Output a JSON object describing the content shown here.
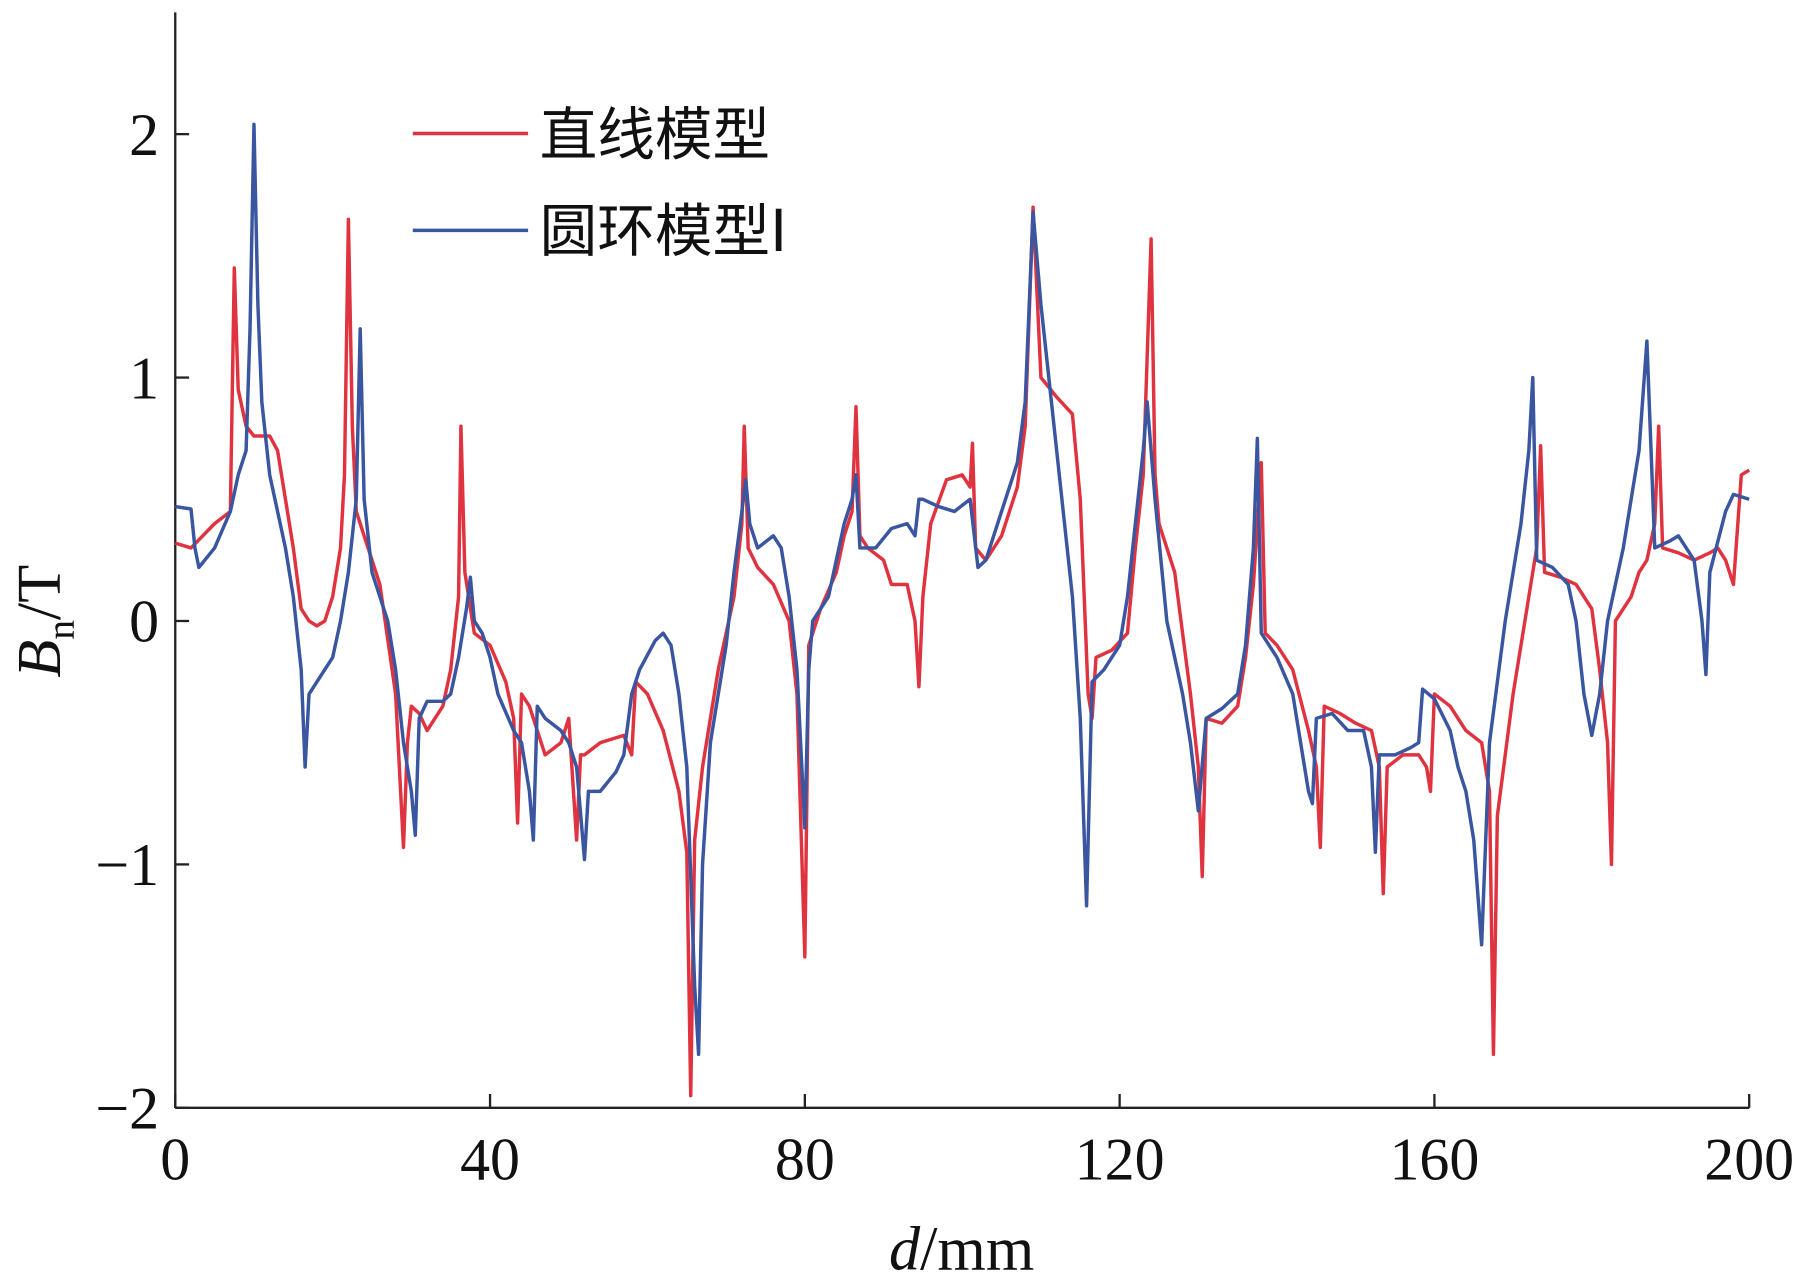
{
  "chart_data": {
    "type": "line",
    "x_label": {
      "symbol": "d",
      "unit": "/mm"
    },
    "y_label": {
      "symbol": "B",
      "subscript": "n",
      "unit": "/T"
    },
    "xlim": [
      0,
      200
    ],
    "xticks": [
      0,
      40,
      80,
      120,
      160,
      200
    ],
    "ylim": [
      -2,
      2.5
    ],
    "yticks": [
      {
        "value": -2,
        "label": "−2"
      },
      {
        "value": -1,
        "label": "−1"
      },
      0,
      1,
      2
    ],
    "legend": "upper-left",
    "series": [
      {
        "name": "直线模型",
        "color": "#e03340",
        "x": [
          0,
          2,
          5,
          7,
          7.5,
          8,
          9,
          10,
          12,
          13,
          15,
          16,
          17,
          18,
          19,
          20,
          21,
          21.5,
          22,
          22.5,
          23,
          24,
          26,
          28,
          29,
          29.5,
          30,
          31,
          32,
          34,
          35,
          36,
          36.3,
          36.8,
          38,
          40,
          42,
          43,
          43.5,
          44,
          45,
          46,
          47,
          49,
          50,
          51,
          51.5,
          52,
          54,
          57,
          58,
          58.5,
          60,
          62,
          64,
          65,
          65.5,
          66,
          67,
          69,
          71,
          72,
          72.3,
          72.8,
          74,
          76,
          78,
          79,
          80,
          80.5,
          82,
          84,
          85,
          86,
          86.5,
          87,
          88,
          90,
          91,
          93,
          94,
          94.5,
          95,
          96,
          98,
          100,
          101,
          101.3,
          101.7,
          103,
          105,
          107,
          108,
          109,
          110,
          112,
          114,
          115,
          116,
          116.5,
          117,
          119,
          121,
          122,
          123,
          124,
          124.5,
          125,
          127,
          129,
          130,
          130.5,
          131,
          133,
          135,
          136,
          137,
          138,
          138.5,
          140,
          142,
          144,
          145,
          145.5,
          146,
          148,
          150,
          152,
          153,
          153.5,
          154,
          156,
          158,
          159,
          159.5,
          160,
          162,
          164,
          166,
          167,
          167.5,
          168,
          170,
          172,
          173,
          173.5,
          174,
          176,
          178,
          180,
          181,
          182,
          182.5,
          183,
          185,
          186,
          187,
          188,
          188.5,
          189,
          191,
          193,
          195,
          196,
          197,
          198,
          199,
          200
        ],
        "values": [
          0.32,
          0.3,
          0.4,
          0.45,
          1.45,
          0.95,
          0.8,
          0.76,
          0.76,
          0.7,
          0.3,
          0.05,
          0,
          -0.02,
          0,
          0.1,
          0.3,
          0.6,
          1.65,
          0.8,
          0.45,
          0.35,
          0.15,
          -0.3,
          -0.93,
          -0.5,
          -0.35,
          -0.38,
          -0.45,
          -0.35,
          -0.2,
          0.1,
          0.8,
          0.2,
          -0.05,
          -0.1,
          -0.25,
          -0.4,
          -0.83,
          -0.3,
          -0.35,
          -0.45,
          -0.55,
          -0.5,
          -0.4,
          -0.9,
          -0.55,
          -0.55,
          -0.5,
          -0.47,
          -0.55,
          -0.25,
          -0.3,
          -0.45,
          -0.7,
          -0.95,
          -1.95,
          -0.9,
          -0.6,
          -0.2,
          0.1,
          0.4,
          0.8,
          0.3,
          0.22,
          0.15,
          0,
          -0.3,
          -1.38,
          -0.1,
          0.05,
          0.2,
          0.35,
          0.45,
          0.88,
          0.35,
          0.3,
          0.25,
          0.15,
          0.15,
          0,
          -0.27,
          0.1,
          0.4,
          0.58,
          0.6,
          0.55,
          0.73,
          0.3,
          0.25,
          0.35,
          0.55,
          0.8,
          1.7,
          1,
          0.92,
          0.85,
          0.5,
          -0.3,
          -0.4,
          -0.15,
          -0.12,
          -0.05,
          0.3,
          0.6,
          1.57,
          0.6,
          0.4,
          0.2,
          -0.3,
          -0.6,
          -1.05,
          -0.4,
          -0.42,
          -0.35,
          -0.15,
          0.15,
          0.65,
          -0.05,
          -0.1,
          -0.2,
          -0.45,
          -0.6,
          -0.93,
          -0.35,
          -0.38,
          -0.42,
          -0.45,
          -0.6,
          -1.12,
          -0.6,
          -0.55,
          -0.55,
          -0.6,
          -0.7,
          -0.3,
          -0.35,
          -0.45,
          -0.5,
          -0.7,
          -1.78,
          -0.8,
          -0.3,
          0.1,
          0.3,
          0.72,
          0.2,
          0.18,
          0.15,
          0.05,
          -0.2,
          -0.5,
          -1,
          0,
          0.1,
          0.2,
          0.25,
          0.4,
          0.8,
          0.3,
          0.28,
          0.25,
          0.28,
          0.3,
          0.25,
          0.15,
          0.6,
          0.62
        ]
      },
      {
        "name": "圆环模型I",
        "color": "#3a56a0",
        "x": [
          0,
          2,
          2.5,
          3,
          5,
          7,
          8,
          9,
          9.5,
          10,
          10.5,
          11,
          12,
          14,
          15,
          16,
          16.5,
          17,
          18,
          20,
          21,
          22,
          23,
          23.5,
          24,
          25,
          27,
          28,
          29,
          30,
          30.5,
          31,
          32,
          34,
          35,
          36,
          37,
          37.5,
          38,
          39,
          40,
          41,
          43,
          44,
          45,
          45.5,
          46,
          47,
          49,
          50,
          51,
          52,
          52.5,
          54,
          56,
          57,
          58,
          59,
          61,
          62,
          63,
          64,
          65,
          66,
          66.5,
          67,
          68,
          70,
          71,
          72,
          72.5,
          73,
          74,
          76,
          77,
          78,
          79,
          80,
          80.5,
          81,
          83,
          85,
          86,
          86.5,
          87,
          89,
          91,
          93,
          94,
          94.5,
          95,
          97,
          99,
          101,
          102,
          103,
          105,
          107,
          108,
          109,
          110,
          111,
          112,
          113,
          114,
          115,
          115.8,
          116.5,
          118,
          120,
          121,
          122,
          123,
          123.5,
          124.5,
          126,
          128,
          129,
          130,
          131,
          133,
          135,
          136,
          137,
          137.5,
          138,
          140,
          142,
          143,
          144,
          144.5,
          145,
          147,
          149,
          151,
          152,
          152.5,
          153,
          155,
          157,
          158,
          158.5,
          160,
          162,
          163,
          164,
          165,
          166,
          167,
          169,
          171,
          172,
          172.5,
          173,
          175,
          177,
          178,
          179,
          180,
          181,
          182,
          184,
          185,
          186,
          187,
          188,
          190,
          191,
          192,
          193,
          194,
          194.5,
          195,
          197,
          198,
          200
        ],
        "values": [
          0.47,
          0.46,
          0.3,
          0.22,
          0.3,
          0.45,
          0.6,
          0.7,
          1.2,
          2.04,
          1.3,
          0.9,
          0.6,
          0.3,
          0.1,
          -0.2,
          -0.6,
          -0.3,
          -0.25,
          -0.15,
          0,
          0.2,
          0.5,
          1.2,
          0.5,
          0.2,
          0,
          -0.2,
          -0.5,
          -0.7,
          -0.88,
          -0.4,
          -0.33,
          -0.33,
          -0.3,
          -0.15,
          0.05,
          0.18,
          0,
          -0.05,
          -0.15,
          -0.3,
          -0.45,
          -0.5,
          -0.7,
          -0.9,
          -0.35,
          -0.4,
          -0.45,
          -0.5,
          -0.6,
          -0.98,
          -0.7,
          -0.7,
          -0.62,
          -0.55,
          -0.3,
          -0.2,
          -0.08,
          -0.05,
          -0.1,
          -0.3,
          -0.6,
          -1.5,
          -1.78,
          -1,
          -0.5,
          -0.1,
          0.2,
          0.45,
          0.58,
          0.4,
          0.3,
          0.35,
          0.3,
          0.1,
          -0.2,
          -0.85,
          -0.2,
          0,
          0.1,
          0.4,
          0.5,
          0.6,
          0.3,
          0.3,
          0.38,
          0.4,
          0.35,
          0.5,
          0.5,
          0.47,
          0.45,
          0.5,
          0.22,
          0.25,
          0.45,
          0.65,
          0.9,
          1.68,
          1.3,
          1,
          0.7,
          0.4,
          0.1,
          -0.4,
          -1.17,
          -0.25,
          -0.2,
          -0.1,
          0.1,
          0.4,
          0.7,
          0.9,
          0.5,
          0,
          -0.3,
          -0.5,
          -0.78,
          -0.4,
          -0.36,
          -0.3,
          -0.1,
          0.3,
          0.75,
          -0.05,
          -0.15,
          -0.3,
          -0.5,
          -0.7,
          -0.75,
          -0.4,
          -0.38,
          -0.45,
          -0.45,
          -0.6,
          -0.95,
          -0.55,
          -0.55,
          -0.52,
          -0.5,
          -0.28,
          -0.32,
          -0.45,
          -0.6,
          -0.7,
          -0.9,
          -1.33,
          -0.5,
          0,
          0.4,
          0.7,
          1,
          0.25,
          0.22,
          0.15,
          0,
          -0.3,
          -0.47,
          -0.3,
          0,
          0.3,
          0.5,
          0.7,
          1.15,
          0.3,
          0.33,
          0.35,
          0.3,
          0.25,
          0,
          -0.22,
          0.2,
          0.45,
          0.52,
          0.5
        ]
      }
    ]
  }
}
